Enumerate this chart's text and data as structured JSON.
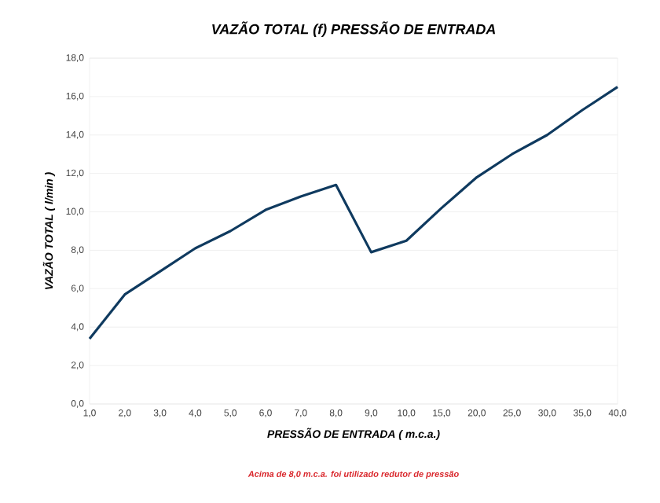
{
  "chart_data": {
    "type": "line",
    "title": "VAZÃO TOTAL (f) PRESSÃO DE ENTRADA",
    "xlabel": "PRESSÃO DE ENTRADA ( m.c.a.)",
    "ylabel": "VAZÃO TOTAL ( l/min )",
    "categories": [
      "1,0",
      "2,0",
      "3,0",
      "4,0",
      "5,0",
      "6,0",
      "7,0",
      "8,0",
      "9,0",
      "10,0",
      "15,0",
      "20,0",
      "25,0",
      "30,0",
      "35,0",
      "40,0"
    ],
    "series": [
      {
        "color": "#0f3a5f",
        "values": [
          3.4,
          5.7,
          6.9,
          8.1,
          9.0,
          10.1,
          10.8,
          11.4,
          7.9,
          8.5,
          10.2,
          11.8,
          13.0,
          14.0,
          15.3,
          16.5
        ]
      }
    ],
    "ylim": [
      0,
      18
    ],
    "yticks": [
      {
        "value": 0,
        "label": "0,0"
      },
      {
        "value": 2,
        "label": "2,0"
      },
      {
        "value": 4,
        "label": "4,0"
      },
      {
        "value": 6,
        "label": "6,0"
      },
      {
        "value": 8,
        "label": "8,0"
      },
      {
        "value": 10,
        "label": "10,0"
      },
      {
        "value": 12,
        "label": "12,0"
      },
      {
        "value": 14,
        "label": "14,0"
      },
      {
        "value": 16,
        "label": "16,0"
      },
      {
        "value": 18,
        "label": "18,0"
      }
    ],
    "grid": "y",
    "marker": "none",
    "line_style": "solid",
    "annotations": [
      "Acima de 8,0 m.c.a. foi utilizado redutor de pressão"
    ]
  }
}
